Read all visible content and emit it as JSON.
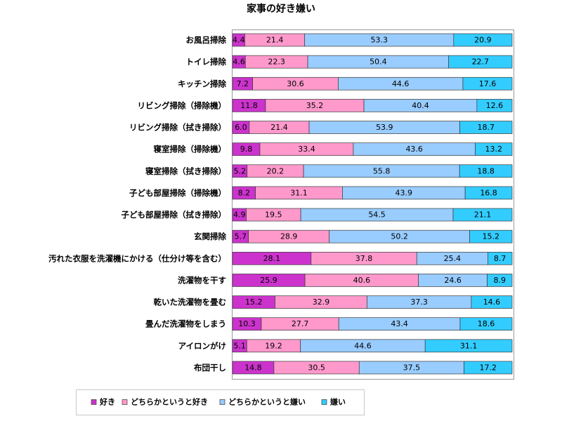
{
  "chart_data": {
    "type": "bar",
    "orientation": "horizontal",
    "stacked": "percent",
    "title": "家事の好き嫌い",
    "xlim": [
      0,
      100
    ],
    "grid": false,
    "legend_position": "bottom",
    "categories": [
      "お風呂掃除",
      "トイレ掃除",
      "キッチン掃除",
      "リビング掃除（掃除機）",
      "リビング掃除（拭き掃除）",
      "寝室掃除（掃除機）",
      "寝室掃除（拭き掃除）",
      "子ども部屋掃除（掃除機）",
      "子ども部屋掃除（拭き掃除）",
      "玄関掃除",
      "汚れた衣服を洗濯機にかける（仕分け等を含む）",
      "洗濯物を干す",
      "乾いた洗濯物を畳む",
      "畳んだ洗濯物をしまう",
      "アイロンがけ",
      "布団干し"
    ],
    "series": [
      {
        "name": "好き",
        "color": "#cc33cc",
        "values": [
          4.4,
          4.6,
          7.2,
          11.8,
          6.0,
          9.8,
          5.2,
          8.2,
          4.9,
          5.7,
          28.1,
          25.9,
          15.2,
          10.3,
          5.1,
          14.8
        ]
      },
      {
        "name": "どちらかというと好き",
        "color": "#ff99cc",
        "values": [
          21.4,
          22.3,
          30.6,
          35.2,
          21.4,
          33.4,
          20.2,
          31.1,
          19.5,
          28.9,
          37.8,
          40.6,
          32.9,
          27.7,
          19.2,
          30.5
        ]
      },
      {
        "name": "どちらかというと嫌い",
        "color": "#99ccff",
        "values": [
          53.3,
          50.4,
          44.6,
          40.4,
          53.9,
          43.6,
          55.8,
          43.9,
          54.5,
          50.2,
          25.4,
          24.6,
          37.3,
          43.4,
          44.6,
          37.5
        ]
      },
      {
        "name": "嫌い",
        "color": "#33ccff",
        "values": [
          20.9,
          22.7,
          17.6,
          12.6,
          18.7,
          13.2,
          18.8,
          16.8,
          21.1,
          15.2,
          8.7,
          8.9,
          14.6,
          18.6,
          31.1,
          17.2
        ]
      }
    ]
  }
}
